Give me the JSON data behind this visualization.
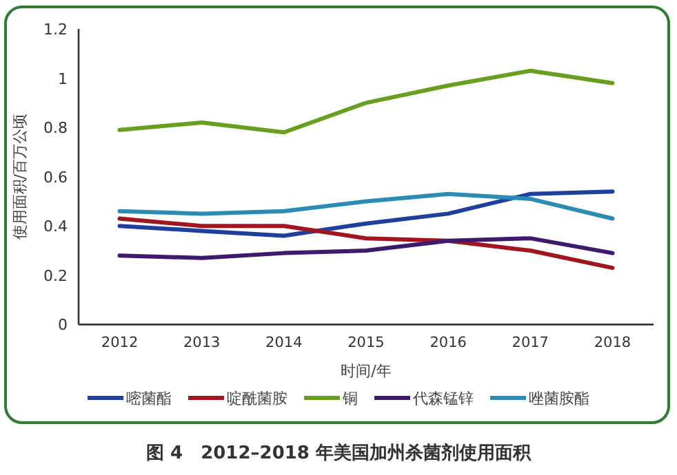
{
  "chart_data": {
    "type": "line",
    "title": "图 4　2012–2018 年美国加州杀菌剂使用面积",
    "xlabel": "时间/年",
    "ylabel": "使用面积/百万公顷",
    "categories": [
      "2012",
      "2013",
      "2014",
      "2015",
      "2016",
      "2017",
      "2018"
    ],
    "ylim": [
      0,
      1.2
    ],
    "yticks": [
      {
        "value": 0,
        "label": "0"
      },
      {
        "value": 0.2,
        "label": "0.2"
      },
      {
        "value": 0.4,
        "label": "0.4"
      },
      {
        "value": 0.6,
        "label": "0.6"
      },
      {
        "value": 0.8,
        "label": "0.8"
      },
      {
        "value": 1,
        "label": "1"
      },
      {
        "value": 1.2,
        "label": "1.2"
      }
    ],
    "legend": "bottom",
    "grid": false,
    "marker": "none",
    "line_style": "solid",
    "series": [
      {
        "name": "嘧菌酯",
        "color": "#1f3f9f",
        "values": [
          0.4,
          0.38,
          0.36,
          0.41,
          0.45,
          0.53,
          0.54
        ]
      },
      {
        "name": "啶酰菌胺",
        "color": "#a0161c",
        "values": [
          0.43,
          0.4,
          0.4,
          0.35,
          0.34,
          0.3,
          0.23
        ]
      },
      {
        "name": "铜",
        "color": "#6a9e1e",
        "values": [
          0.79,
          0.82,
          0.78,
          0.9,
          0.97,
          1.03,
          0.98
        ]
      },
      {
        "name": "代森锰锌",
        "color": "#3d1a6e",
        "values": [
          0.28,
          0.27,
          0.29,
          0.3,
          0.34,
          0.35,
          0.29
        ]
      },
      {
        "name": "唑菌胺酯",
        "color": "#2a8cb4",
        "values": [
          0.46,
          0.45,
          0.46,
          0.5,
          0.53,
          0.51,
          0.43
        ]
      }
    ]
  }
}
